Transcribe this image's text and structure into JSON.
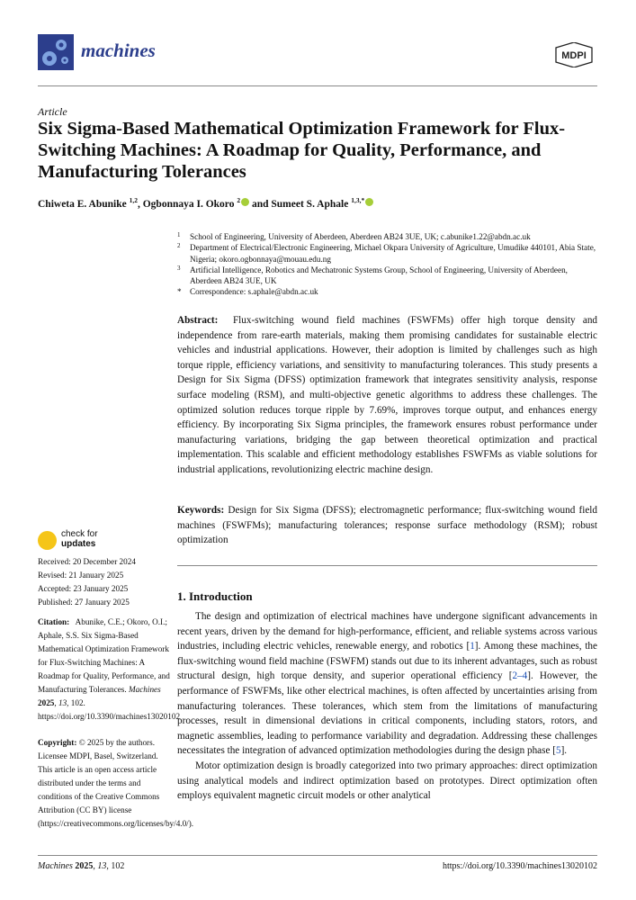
{
  "header": {
    "journal": "machines",
    "publisher_logo": "MDPI",
    "brand_color": "#2c3e8c"
  },
  "article_type": "Article",
  "title": "Six Sigma-Based Mathematical Optimization Framework for Flux-Switching Machines: A Roadmap for Quality, Performance, and Manufacturing Tolerances",
  "authors": [
    {
      "name": "Chiweta E. Abunike",
      "sup": "1,2",
      "orcid": false
    },
    {
      "name": "Ogbonnaya I. Okoro",
      "sup": "2",
      "orcid": true
    },
    {
      "name": "Sumeet S. Aphale",
      "sup": "1,3,*",
      "orcid": true
    }
  ],
  "authors_joiners": [
    ", ",
    " and "
  ],
  "affiliations": [
    {
      "n": "1",
      "text": "School of Engineering, University of Aberdeen, Aberdeen AB24 3UE, UK; c.abunike1.22@abdn.ac.uk"
    },
    {
      "n": "2",
      "text": "Department of Electrical/Electronic Engineering, Michael Okpara University of Agriculture, Umudike 440101, Abia State, Nigeria; okoro.ogbonnaya@mouau.edu.ng"
    },
    {
      "n": "3",
      "text": "Artificial Intelligence, Robotics and Mechatronic Systems Group, School of Engineering, University of Aberdeen, Aberdeen AB24 3UE, UK"
    },
    {
      "n": "*",
      "text": "Correspondence: s.aphale@abdn.ac.uk"
    }
  ],
  "abstract": {
    "label": "Abstract:",
    "text": "Flux-switching wound field machines (FSWFMs) offer high torque density and independence from rare-earth materials, making them promising candidates for sustainable electric vehicles and industrial applications. However, their adoption is limited by challenges such as high torque ripple, efficiency variations, and sensitivity to manufacturing tolerances. This study presents a Design for Six Sigma (DFSS) optimization framework that integrates sensitivity analysis, response surface modeling (RSM), and multi-objective genetic algorithms to address these challenges. The optimized solution reduces torque ripple by 7.69%, improves torque output, and enhances energy efficiency. By incorporating Six Sigma principles, the framework ensures robust performance under manufacturing variations, bridging the gap between theoretical optimization and practical implementation. This scalable and efficient methodology establishes FSWFMs as viable solutions for industrial applications, revolutionizing electric machine design."
  },
  "keywords": {
    "label": "Keywords:",
    "text": "Design for Six Sigma (DFSS); electromagnetic performance; flux-switching wound field machines (FSWFMs); manufacturing tolerances; response surface methodology (RSM); robust optimization"
  },
  "sidebar": {
    "check_updates": [
      "check for",
      "updates"
    ],
    "dates": [
      "Received: 20 December 2024",
      "Revised: 21 January 2025",
      "Accepted: 23 January 2025",
      "Published: 27 January 2025"
    ],
    "citation_label": "Citation:",
    "citation_a": "Abunike, C.E.; Okoro, O.I.; Aphale, S.S. Six Sigma-Based Mathematical Optimization Framework for Flux-Switching Machines: A Roadmap for Quality, Performance, and Manufacturing Tolerances. ",
    "citation_journal": "Machines",
    "citation_year": "2025",
    "citation_vol": "13",
    "citation_b": ", 102. https://doi.org/10.3390/machines13020102",
    "copyright_label": "Copyright:",
    "copyright_text": "© 2025 by the authors. Licensee MDPI, Basel, Switzerland. This article is an open access article distributed under the terms and conditions of the Creative Commons Attribution (CC BY) license (https://creativecommons.org/licenses/by/4.0/)."
  },
  "section": {
    "heading": "1. Introduction",
    "p1": [
      "The design and optimization of electrical machines have undergone significant advancements in recent years, driven by the demand for high-performance, efficient, and reliable systems across various industries, including electric vehicles, renewable energy, and robotics [",
      "1",
      "]. Among these machines, the flux-switching wound field machine (FSWFM) stands out due to its inherent advantages, such as robust structural design, high torque density, and superior operational efficiency [",
      "2–4",
      "]. However, the performance of FSWFMs, like other electrical machines, is often affected by uncertainties arising from manufacturing tolerances. These tolerances, which stem from the limitations of manufacturing processes, result in dimensional deviations in critical components, including stators, rotors, and magnetic assemblies, leading to performance variability and degradation. Addressing these challenges necessitates the integration of advanced optimization methodologies during the design phase [",
      "5",
      "]."
    ],
    "p2": "Motor optimization design is broadly categorized into two primary approaches: direct optimization using analytical models and indirect optimization based on prototypes. Direct optimization often employs equivalent magnetic circuit models or other analytical"
  },
  "footer": {
    "journal": "Machines",
    "year": "2025",
    "vol": "13",
    "article": ", 102",
    "doi": "https://doi.org/10.3390/machines13020102"
  }
}
